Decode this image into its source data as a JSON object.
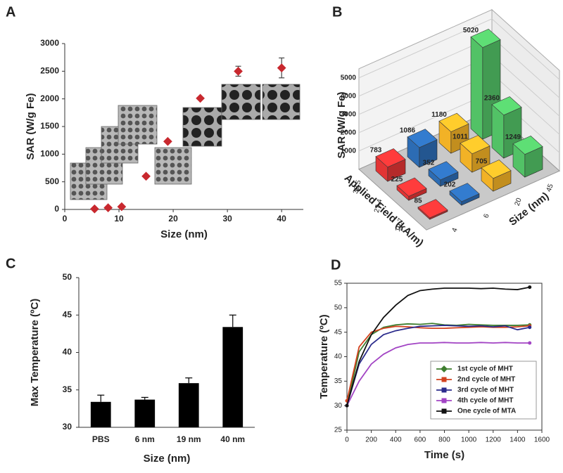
{
  "chart_data": [
    {
      "type": "scatter",
      "panel": "A",
      "x_label": "Size (nm)",
      "y_label": "SAR (W/g Fe)",
      "x": [
        5.5,
        8,
        10.5,
        15,
        19,
        25,
        32,
        40
      ],
      "values": [
        10,
        30,
        50,
        600,
        1230,
        2010,
        2500,
        2560
      ],
      "errors": [
        null,
        null,
        null,
        null,
        null,
        null,
        90,
        180
      ],
      "color": "#c8282e",
      "xlim": [
        0,
        44
      ],
      "xticks": [
        0,
        10,
        20,
        30,
        40
      ],
      "ylim": [
        0,
        3000
      ],
      "yticks": [
        0,
        500,
        1000,
        1500,
        2000,
        2500,
        3000
      ]
    },
    {
      "type": "bar3d",
      "panel": "B",
      "z_label": "SAR (W/g Fe)",
      "row_label": "Applied Field (kA/m)",
      "col_label": "Size (nm)",
      "rows": [
        "32.5",
        "27.4",
        "19.7"
      ],
      "cols": [
        "4",
        "6",
        "20",
        "45"
      ],
      "colors": [
        "#e23434",
        "#2c6cb4",
        "#f2b226",
        "#52c266"
      ],
      "values": [
        [
          783,
          1086,
          1180,
          5020
        ],
        [
          225,
          352,
          1011,
          2360
        ],
        [
          85,
          202,
          705,
          1249
        ]
      ],
      "zlim": [
        0,
        5500
      ],
      "zticks": [
        1000,
        2000,
        3000,
        4000,
        5000
      ]
    },
    {
      "type": "bar",
      "panel": "C",
      "x_label": "Size (nm)",
      "y_label": "Max Temperature (ºC)",
      "categories": [
        "PBS",
        "6 nm",
        "19 nm",
        "40 nm"
      ],
      "values": [
        33.4,
        33.7,
        35.9,
        43.4
      ],
      "errors": [
        0.9,
        0.3,
        0.7,
        1.6
      ],
      "color": "#000000",
      "ylim": [
        30,
        50
      ],
      "yticks": [
        30,
        35,
        40,
        45,
        50
      ]
    },
    {
      "type": "line",
      "panel": "D",
      "x_label": "Time (s)",
      "y_label": "Temperature (ºC)",
      "x": [
        0,
        100,
        200,
        300,
        400,
        500,
        600,
        700,
        800,
        900,
        1000,
        1100,
        1200,
        1300,
        1400,
        1500
      ],
      "series": [
        {
          "name": "1st cycle of MHT",
          "color": "#3d7d2e",
          "values": [
            30,
            41,
            44.5,
            46,
            46.5,
            46.7,
            46.6,
            46.8,
            46.5,
            46.4,
            46.6,
            46.5,
            46.4,
            46.4,
            46.4,
            46.5
          ]
        },
        {
          "name": "2nd cycle of MHT",
          "color": "#d2421f",
          "values": [
            31,
            42,
            45,
            45.8,
            46.2,
            46.1,
            45.9,
            45.8,
            45.8,
            45.9,
            46,
            46.1,
            46,
            46,
            46.1,
            46.3
          ]
        },
        {
          "name": "3rd cycle of MHT",
          "color": "#2b2b8c",
          "values": [
            30,
            38.5,
            42.5,
            44.5,
            45.3,
            45.8,
            46.2,
            46.3,
            46.4,
            46.3,
            46.2,
            46.3,
            46.1,
            46.3,
            45.5,
            46
          ]
        },
        {
          "name": "4th cycle of MHT",
          "color": "#a244c4",
          "values": [
            30,
            35,
            38.5,
            40.5,
            41.8,
            42.5,
            42.8,
            42.8,
            42.9,
            42.8,
            42.8,
            42.9,
            42.8,
            42.9,
            42.8,
            42.8
          ]
        },
        {
          "name": "One cycle of MTA",
          "color": "#111111",
          "values": [
            30,
            39,
            44.5,
            48,
            50.5,
            52.5,
            53.5,
            53.8,
            54,
            54,
            54,
            53.9,
            54,
            53.8,
            53.7,
            54.2
          ]
        }
      ],
      "xlim": [
        0,
        1600
      ],
      "xticks": [
        0,
        200,
        400,
        600,
        800,
        1000,
        1200,
        1400,
        1600
      ],
      "ylim": [
        25,
        55
      ],
      "yticks": [
        25,
        30,
        35,
        40,
        45,
        50,
        55
      ]
    }
  ]
}
